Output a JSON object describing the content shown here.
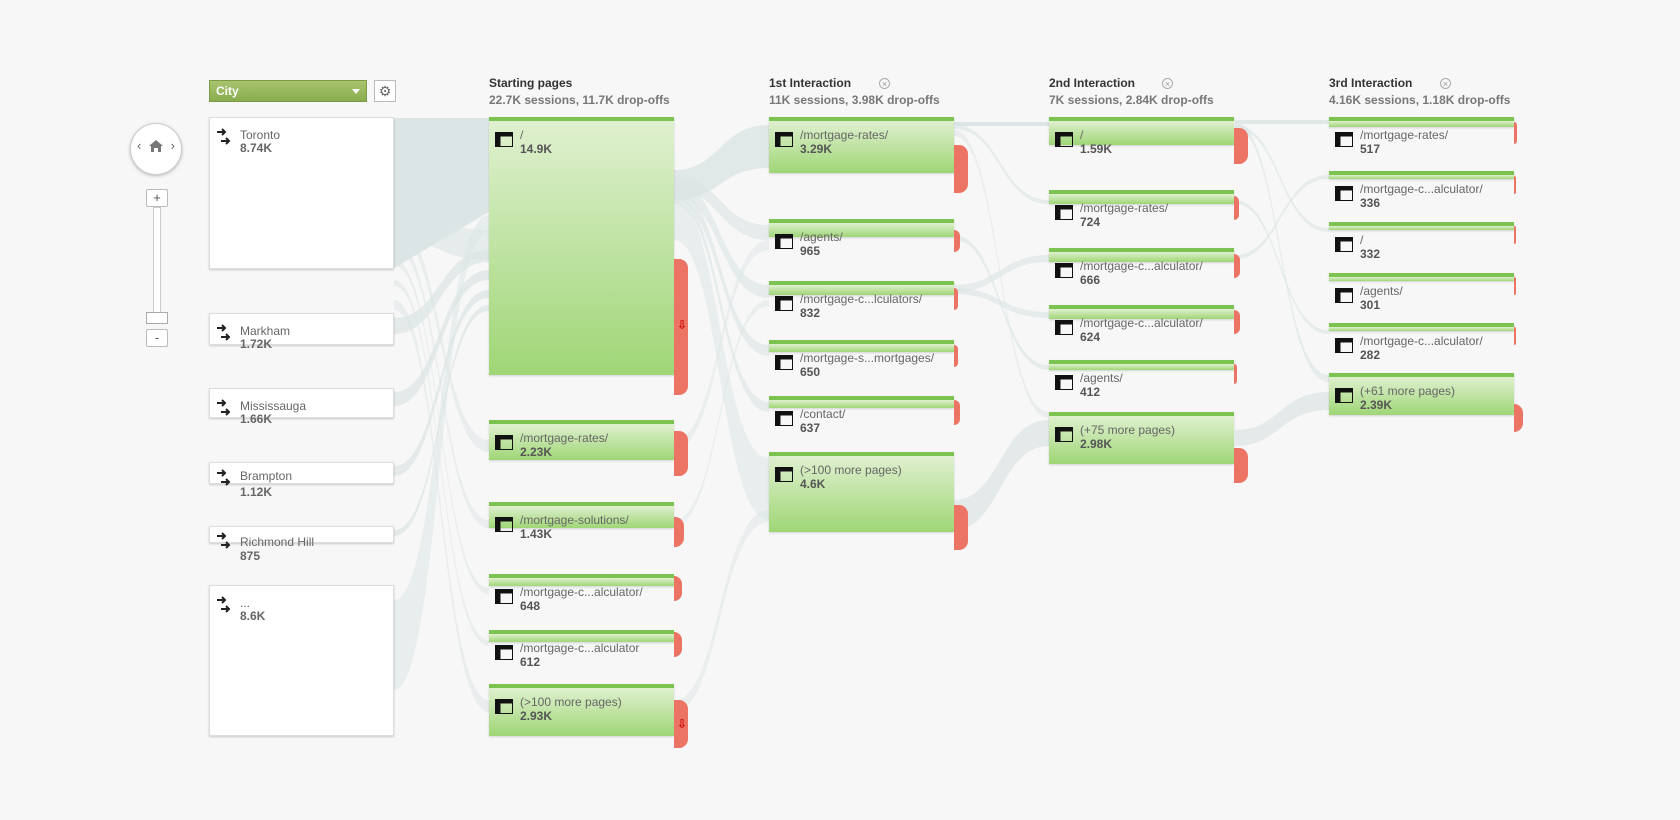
{
  "dimension": {
    "selected": "City"
  },
  "columns": [
    {
      "title": "Starting pages",
      "stats": "22.7K sessions, 11.7K drop-offs"
    },
    {
      "title": "1st Interaction",
      "stats": "11K sessions, 3.98K drop-offs"
    },
    {
      "title": "2nd Interaction",
      "stats": "7K sessions, 2.84K drop-offs"
    },
    {
      "title": "3rd Interaction",
      "stats": "4.16K sessions, 1.18K drop-offs"
    }
  ],
  "sources": [
    {
      "label": "Toronto",
      "value": "8.74K"
    },
    {
      "label": "Markham",
      "value": "1.72K"
    },
    {
      "label": "Mississauga",
      "value": "1.66K"
    },
    {
      "label": "Brampton",
      "value": "1.12K"
    },
    {
      "label": "Richmond Hill",
      "value": "875"
    },
    {
      "label": "...",
      "value": "8.6K"
    }
  ],
  "starting_pages": [
    {
      "label": "/",
      "value": "14.9K"
    },
    {
      "label": "/mortgage-rates/",
      "value": "2.23K"
    },
    {
      "label": "/mortgage-solutions/",
      "value": "1.43K"
    },
    {
      "label": "/mortgage-c...alculator/",
      "value": "648"
    },
    {
      "label": "/mortgage-c...alculator",
      "value": "612"
    },
    {
      "label": "(>100 more pages)",
      "value": "2.93K"
    }
  ],
  "interaction_1": [
    {
      "label": "/mortgage-rates/",
      "value": "3.29K"
    },
    {
      "label": "/agents/",
      "value": "965"
    },
    {
      "label": "/mortgage-c...lculators/",
      "value": "832"
    },
    {
      "label": "/mortgage-s...mortgages/",
      "value": "650"
    },
    {
      "label": "/contact/",
      "value": "637"
    },
    {
      "label": "(>100 more pages)",
      "value": "4.6K"
    }
  ],
  "interaction_2": [
    {
      "label": "/",
      "value": "1.59K"
    },
    {
      "label": "/mortgage-rates/",
      "value": "724"
    },
    {
      "label": "/mortgage-c...alculator/",
      "value": "666"
    },
    {
      "label": "/mortgage-c...alculator/",
      "value": "624"
    },
    {
      "label": "/agents/",
      "value": "412"
    },
    {
      "label": "(+75 more pages)",
      "value": "2.98K"
    }
  ],
  "interaction_3": [
    {
      "label": "/mortgage-rates/",
      "value": "517"
    },
    {
      "label": "/mortgage-c...alculator/",
      "value": "336"
    },
    {
      "label": "/",
      "value": "332"
    },
    {
      "label": "/agents/",
      "value": "301"
    },
    {
      "label": "/mortgage-c...alculator/",
      "value": "282"
    },
    {
      "label": "(+61 more pages)",
      "value": "2.39K"
    }
  ],
  "colors": {
    "node_green": "#9fd676",
    "node_border": "#7cc352",
    "dropoff_red": "#ec7464",
    "flow": "#d5dfdf",
    "selector_green": "#8aad50"
  },
  "icons": {
    "source": "arrows-right-icon",
    "page": "page-layout-icon",
    "home": "home-icon",
    "settings": "gear-icon"
  }
}
